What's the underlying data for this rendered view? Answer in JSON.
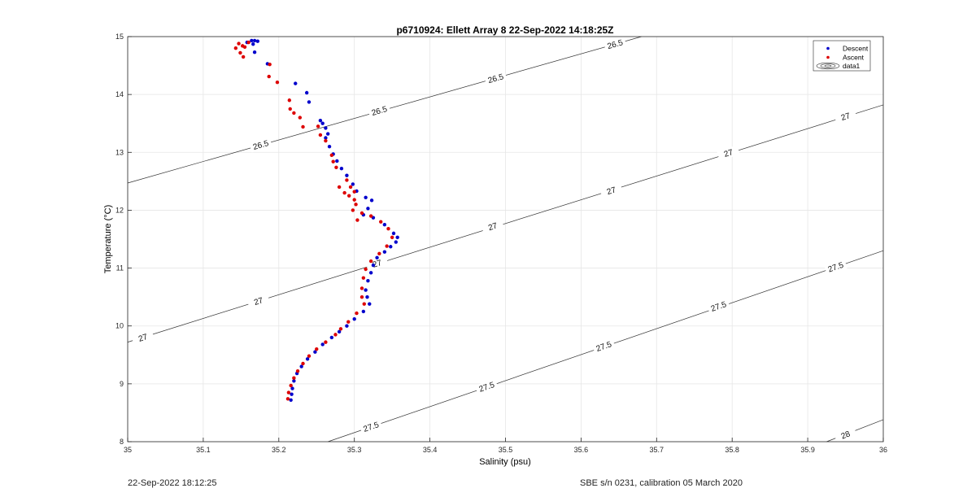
{
  "chart_data": {
    "type": "scatter",
    "title": "p6710924: Ellett Array 8 22-Sep-2022 14:18:25Z",
    "xlabel": "Salinity (psu)",
    "ylabel": "Temperature (°C)",
    "xlim": [
      35,
      36
    ],
    "ylim": [
      8,
      15
    ],
    "xticks": [
      35,
      35.1,
      35.2,
      35.3,
      35.4,
      35.5,
      35.6,
      35.7,
      35.8,
      35.9,
      36
    ],
    "xtick_labels": [
      "35",
      "35.1",
      "35.2",
      "35.3",
      "35.4",
      "35.5",
      "35.6",
      "35.7",
      "35.8",
      "35.9",
      "36"
    ],
    "yticks": [
      8,
      9,
      10,
      11,
      12,
      13,
      14,
      15
    ],
    "ytick_labels": [
      "8",
      "9",
      "10",
      "11",
      "12",
      "13",
      "14",
      "15"
    ],
    "grid": true,
    "legend_position": "top-right",
    "legend": [
      "Descent",
      "Ascent",
      "data1"
    ],
    "series": [
      {
        "name": "Descent",
        "color": "#0000cc",
        "points": [
          [
            35.164,
            14.93
          ],
          [
            35.168,
            14.93
          ],
          [
            35.172,
            14.92
          ],
          [
            35.158,
            14.9
          ],
          [
            35.166,
            14.87
          ],
          [
            35.168,
            14.73
          ],
          [
            35.185,
            14.53
          ],
          [
            35.222,
            14.19
          ],
          [
            35.237,
            14.03
          ],
          [
            35.24,
            13.87
          ],
          [
            35.255,
            13.55
          ],
          [
            35.258,
            13.5
          ],
          [
            35.262,
            13.42
          ],
          [
            35.265,
            13.32
          ],
          [
            35.262,
            13.25
          ],
          [
            35.267,
            13.1
          ],
          [
            35.272,
            12.97
          ],
          [
            35.277,
            12.85
          ],
          [
            35.283,
            12.72
          ],
          [
            35.29,
            12.6
          ],
          [
            35.298,
            12.45
          ],
          [
            35.303,
            12.33
          ],
          [
            35.315,
            12.22
          ],
          [
            35.323,
            12.17
          ],
          [
            35.318,
            12.03
          ],
          [
            35.312,
            11.92
          ],
          [
            35.325,
            11.87
          ],
          [
            35.34,
            11.75
          ],
          [
            35.352,
            11.6
          ],
          [
            35.357,
            11.53
          ],
          [
            35.355,
            11.45
          ],
          [
            35.348,
            11.37
          ],
          [
            35.34,
            11.28
          ],
          [
            35.33,
            11.18
          ],
          [
            35.325,
            11.05
          ],
          [
            35.322,
            10.92
          ],
          [
            35.318,
            10.78
          ],
          [
            35.315,
            10.62
          ],
          [
            35.317,
            10.5
          ],
          [
            35.32,
            10.38
          ],
          [
            35.312,
            10.25
          ],
          [
            35.3,
            10.12
          ],
          [
            35.29,
            10.0
          ],
          [
            35.28,
            9.9
          ],
          [
            35.27,
            9.8
          ],
          [
            35.258,
            9.68
          ],
          [
            35.248,
            9.55
          ],
          [
            35.238,
            9.43
          ],
          [
            35.23,
            9.3
          ],
          [
            35.224,
            9.18
          ],
          [
            35.22,
            9.05
          ],
          [
            35.218,
            8.92
          ],
          [
            35.217,
            8.82
          ],
          [
            35.216,
            8.72
          ]
        ]
      },
      {
        "name": "Ascent",
        "color": "#dd0000",
        "points": [
          [
            35.147,
            14.88
          ],
          [
            35.152,
            14.84
          ],
          [
            35.143,
            14.8
          ],
          [
            35.155,
            14.82
          ],
          [
            35.149,
            14.72
          ],
          [
            35.153,
            14.65
          ],
          [
            35.16,
            14.9
          ],
          [
            35.188,
            14.52
          ],
          [
            35.187,
            14.31
          ],
          [
            35.198,
            14.21
          ],
          [
            35.214,
            13.9
          ],
          [
            35.215,
            13.75
          ],
          [
            35.22,
            13.68
          ],
          [
            35.228,
            13.6
          ],
          [
            35.232,
            13.44
          ],
          [
            35.252,
            13.45
          ],
          [
            35.255,
            13.3
          ],
          [
            35.262,
            13.2
          ],
          [
            35.27,
            12.95
          ],
          [
            35.272,
            12.84
          ],
          [
            35.276,
            12.74
          ],
          [
            35.29,
            12.52
          ],
          [
            35.295,
            12.4
          ],
          [
            35.28,
            12.4
          ],
          [
            35.287,
            12.3
          ],
          [
            35.3,
            12.32
          ],
          [
            35.293,
            12.25
          ],
          [
            35.3,
            12.18
          ],
          [
            35.302,
            12.1
          ],
          [
            35.298,
            12.0
          ],
          [
            35.304,
            11.83
          ],
          [
            35.31,
            11.95
          ],
          [
            35.322,
            11.9
          ],
          [
            35.335,
            11.8
          ],
          [
            35.345,
            11.68
          ],
          [
            35.35,
            11.53
          ],
          [
            35.343,
            11.38
          ],
          [
            35.333,
            11.25
          ],
          [
            35.322,
            11.12
          ],
          [
            35.315,
            10.98
          ],
          [
            35.312,
            10.83
          ],
          [
            35.31,
            10.65
          ],
          [
            35.31,
            10.5
          ],
          [
            35.313,
            10.38
          ],
          [
            35.303,
            10.22
          ],
          [
            35.292,
            10.07
          ],
          [
            35.282,
            9.95
          ],
          [
            35.275,
            9.85
          ],
          [
            35.262,
            9.72
          ],
          [
            35.25,
            9.6
          ],
          [
            35.24,
            9.48
          ],
          [
            35.232,
            9.35
          ],
          [
            35.225,
            9.22
          ],
          [
            35.22,
            9.1
          ],
          [
            35.216,
            8.97
          ],
          [
            35.213,
            8.85
          ],
          [
            35.212,
            8.74
          ]
        ]
      }
    ],
    "contours": [
      {
        "value": "26.5",
        "labels": [
          "26.5",
          "26.5",
          "26.5",
          "26.5"
        ]
      },
      {
        "value": "27",
        "labels": [
          "27",
          "27",
          "27",
          "27",
          "27",
          "27",
          "27"
        ]
      },
      {
        "value": "27.5",
        "labels": [
          "27.5",
          "27.5",
          "27.5",
          "27.5",
          "27.5"
        ]
      },
      {
        "value": "28",
        "labels": [
          "28"
        ]
      }
    ]
  },
  "footer": {
    "left": "22-Sep-2022 18:12:25",
    "right": "SBE s/n 0231, calibration 05 March 2020"
  }
}
